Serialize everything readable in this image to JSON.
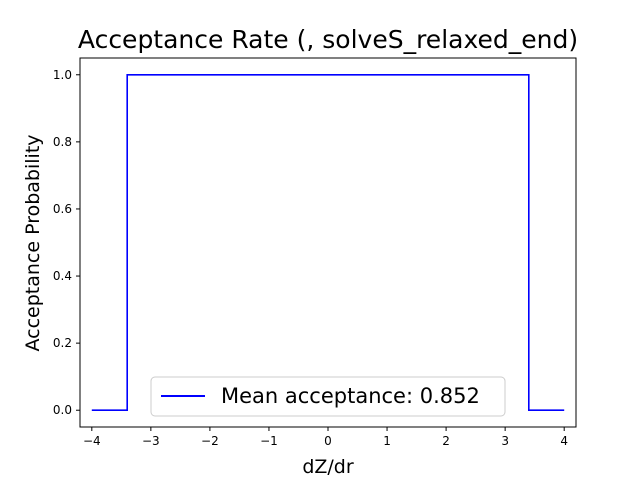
{
  "chart_data": {
    "type": "line",
    "title": "Acceptance Rate (, solveS_relaxed_end)",
    "xlabel": "dZ/dr",
    "ylabel": "Acceptance Probability",
    "xlim": [
      -4.2,
      4.2
    ],
    "ylim": [
      -0.05,
      1.05
    ],
    "x_ticks": [
      -4,
      -3,
      -2,
      -1,
      0,
      1,
      2,
      3,
      4
    ],
    "x_tick_labels": [
      "−4",
      "−3",
      "−2",
      "−1",
      "0",
      "1",
      "2",
      "3",
      "4"
    ],
    "y_ticks": [
      0.0,
      0.2,
      0.4,
      0.6,
      0.8,
      1.0
    ],
    "y_tick_labels": [
      "0.0",
      "0.2",
      "0.4",
      "0.6",
      "0.8",
      "1.0"
    ],
    "grid": false,
    "legend_position": "bottom-center",
    "series": [
      {
        "name": "Mean acceptance: 0.852",
        "color": "#0000ff",
        "step": "post",
        "x": [
          -4.0,
          -3.4,
          -3.4,
          3.4,
          3.4,
          4.0
        ],
        "y": [
          0.0,
          0.0,
          1.0,
          1.0,
          0.0,
          0.0
        ]
      }
    ]
  }
}
